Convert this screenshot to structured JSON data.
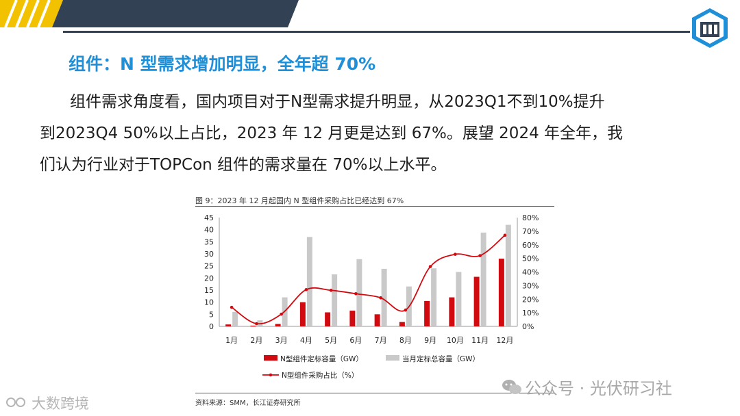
{
  "slide": {
    "heading": "组件：N 型需求增加明显，全年超 70%",
    "para_line1": "组件需求角度看，国内项目对于N型需求提升明显，从2023Q1不到10%提升",
    "para_line2": "到2023Q4 50%以上占比，2023 年 12 月更是达到 67%。展望 2024 年全年，我",
    "para_line3": "们认为行业对于TOPCon 组件的需求量在 70%以上水平。",
    "figure_title": "图 9：2023 年 12 月起国内 N 型组件采购占比已经达到 67%",
    "source": "资料来源：SMM，长江证券研究所",
    "watermark_wechat": "公众号 · 光伏研习社",
    "watermark_corner": "大数跨境"
  },
  "colors": {
    "bar_n": "#d10a10",
    "bar_total": "#c9c9c9",
    "line": "#d10a10",
    "accent": "#1f8fd8",
    "top_dark": "#334155",
    "top_yellow": "#f2c200"
  },
  "chart_data": {
    "type": "bar",
    "categories": [
      "1月",
      "2月",
      "3月",
      "4月",
      "5月",
      "6月",
      "7月",
      "8月",
      "9月",
      "10月",
      "11月",
      "12月"
    ],
    "series": [
      {
        "name": "N型组件定标容量（GW）",
        "kind": "bar",
        "axis": "left",
        "values": [
          0.8,
          0.3,
          1.0,
          10.0,
          5.8,
          6.5,
          5.0,
          1.8,
          10.5,
          12.0,
          20.5,
          28.0
        ]
      },
      {
        "name": "当月定标总容量（GW）",
        "kind": "bar",
        "axis": "left",
        "values": [
          6.0,
          2.5,
          12.0,
          37.0,
          21.5,
          27.8,
          23.8,
          16.5,
          24.0,
          22.5,
          38.8,
          42.0
        ]
      },
      {
        "name": "N型组件采购占比（%）",
        "kind": "line",
        "axis": "right",
        "values": [
          14,
          2,
          9,
          27,
          26.5,
          24,
          21,
          12,
          44,
          53,
          52,
          67
        ]
      }
    ],
    "left_axis": {
      "min": 0,
      "max": 45,
      "ticks": [
        "0",
        "5",
        "10",
        "15",
        "20",
        "25",
        "30",
        "35",
        "40",
        "45"
      ]
    },
    "right_axis": {
      "min": 0,
      "max": 80,
      "ticks": [
        "0%",
        "10%",
        "20%",
        "30%",
        "40%",
        "50%",
        "60%",
        "70%",
        "80%"
      ]
    },
    "legend": [
      "N型组件定标容量（GW）",
      "当月定标总容量（GW）",
      "N型组件采购占比（%）"
    ],
    "legend_position": "bottom"
  }
}
